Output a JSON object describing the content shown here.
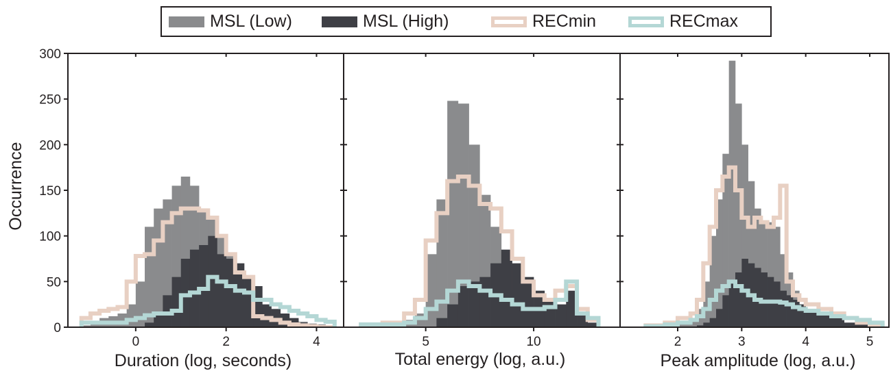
{
  "legend": [
    {
      "name": "MSL (Low)",
      "style": "fill",
      "color": "#8a8b8d"
    },
    {
      "name": "MSL (High)",
      "style": "fill",
      "color": "#3e3f45"
    },
    {
      "name": "RECmin",
      "style": "outline",
      "color": "#e8d0c3"
    },
    {
      "name": "RECmax",
      "style": "outline",
      "color": "#b4d7d5"
    }
  ],
  "chart_data": [
    {
      "type": "histogram",
      "xlabel": "Duration (log, seconds)",
      "ylabel": "Occurrence",
      "xlim": [
        -1.5,
        4.6
      ],
      "ylim": [
        0,
        300
      ],
      "yticks": [
        0,
        50,
        100,
        150,
        200,
        250,
        300
      ],
      "xticks": [
        0,
        2,
        4
      ],
      "bin_edges": [
        -1.2,
        -1.0,
        -0.8,
        -0.6,
        -0.4,
        -0.2,
        0.0,
        0.2,
        0.4,
        0.6,
        0.8,
        1.0,
        1.2,
        1.4,
        1.6,
        1.8,
        2.0,
        2.2,
        2.4,
        2.6,
        2.8,
        3.0,
        3.2,
        3.4,
        3.6,
        3.8,
        4.0,
        4.2,
        4.4
      ],
      "series": [
        {
          "name": "MSL (Low)",
          "values": [
            2,
            5,
            10,
            12,
            15,
            25,
            50,
            110,
            130,
            140,
            155,
            165,
            155,
            130,
            120,
            100,
            80,
            60,
            40,
            25,
            20,
            15,
            10,
            8,
            6,
            4,
            3,
            2
          ]
        },
        {
          "name": "MSL (High)",
          "values": [
            0,
            0,
            0,
            0,
            0,
            0,
            0,
            5,
            15,
            35,
            55,
            75,
            85,
            90,
            100,
            80,
            75,
            70,
            55,
            45,
            25,
            20,
            15,
            10,
            5,
            2,
            1,
            0
          ]
        },
        {
          "name": "RECmin",
          "values": [
            10,
            15,
            18,
            20,
            22,
            50,
            78,
            80,
            95,
            115,
            125,
            130,
            130,
            128,
            120,
            100,
            80,
            60,
            55,
            12,
            10,
            8,
            5,
            3,
            2,
            1,
            0,
            0
          ]
        },
        {
          "name": "RECmax",
          "values": [
            5,
            5,
            5,
            5,
            5,
            8,
            10,
            13,
            15,
            15,
            18,
            35,
            38,
            42,
            55,
            50,
            45,
            40,
            38,
            30,
            30,
            25,
            22,
            18,
            15,
            12,
            8,
            6
          ]
        }
      ]
    },
    {
      "type": "histogram",
      "xlabel": "Total energy (log, a.u.)",
      "ylabel": "",
      "xlim": [
        1.2,
        14.0
      ],
      "ylim": [
        0,
        300
      ],
      "xticks": [
        5,
        10
      ],
      "bin_edges": [
        2,
        3,
        4,
        4.5,
        5,
        5.5,
        6,
        6.5,
        7,
        7.5,
        8,
        8.5,
        9,
        9.5,
        10,
        10.5,
        11,
        11.5,
        12,
        12.5,
        13
      ],
      "series": [
        {
          "name": "MSL (Low)",
          "values": [
            2,
            3,
            8,
            15,
            80,
            140,
            248,
            245,
            200,
            145,
            110,
            70,
            40,
            20,
            15,
            10,
            8,
            12,
            5,
            2
          ]
        },
        {
          "name": "MSL (High)",
          "values": [
            0,
            0,
            0,
            0,
            0,
            10,
            25,
            45,
            50,
            55,
            70,
            85,
            70,
            55,
            40,
            30,
            25,
            40,
            15,
            5
          ]
        },
        {
          "name": "RECmin",
          "values": [
            3,
            5,
            15,
            30,
            95,
            125,
            160,
            165,
            155,
            135,
            130,
            105,
            75,
            50,
            35,
            30,
            40,
            45,
            20,
            8
          ]
        },
        {
          "name": "RECmax",
          "values": [
            3,
            3,
            5,
            10,
            20,
            28,
            40,
            50,
            45,
            40,
            35,
            30,
            25,
            20,
            20,
            22,
            30,
            50,
            15,
            10
          ]
        }
      ]
    },
    {
      "type": "histogram",
      "xlabel": "Peak amplitude (log, a.u.)",
      "ylabel": "",
      "xlim": [
        1.1,
        5.3
      ],
      "ylim": [
        0,
        300
      ],
      "xticks": [
        2,
        3,
        4,
        5
      ],
      "bin_edges": [
        1.5,
        1.8,
        2.0,
        2.2,
        2.3,
        2.4,
        2.5,
        2.6,
        2.7,
        2.8,
        2.9,
        3.0,
        3.1,
        3.2,
        3.3,
        3.4,
        3.5,
        3.6,
        3.7,
        3.8,
        3.9,
        4.0,
        4.2,
        4.4,
        4.6,
        4.8,
        5.0,
        5.2
      ],
      "series": [
        {
          "name": "MSL (Low)",
          "values": [
            1,
            3,
            5,
            10,
            20,
            50,
            100,
            140,
            190,
            292,
            245,
            200,
            160,
            130,
            115,
            115,
            110,
            80,
            60,
            40,
            25,
            15,
            10,
            8,
            5,
            3,
            1
          ]
        },
        {
          "name": "MSL (High)",
          "values": [
            0,
            0,
            0,
            0,
            2,
            5,
            10,
            20,
            35,
            50,
            60,
            75,
            70,
            65,
            60,
            55,
            50,
            40,
            35,
            30,
            25,
            20,
            15,
            10,
            5,
            3,
            1
          ]
        },
        {
          "name": "RECmin",
          "values": [
            2,
            5,
            10,
            15,
            30,
            70,
            110,
            150,
            165,
            175,
            150,
            120,
            110,
            120,
            115,
            110,
            120,
            155,
            50,
            35,
            30,
            25,
            20,
            15,
            10,
            5,
            2
          ]
        },
        {
          "name": "RECmax",
          "values": [
            1,
            3,
            5,
            8,
            12,
            20,
            30,
            40,
            45,
            50,
            45,
            40,
            35,
            30,
            28,
            28,
            28,
            27,
            25,
            22,
            20,
            18,
            15,
            12,
            10,
            8,
            5
          ]
        }
      ]
    }
  ]
}
